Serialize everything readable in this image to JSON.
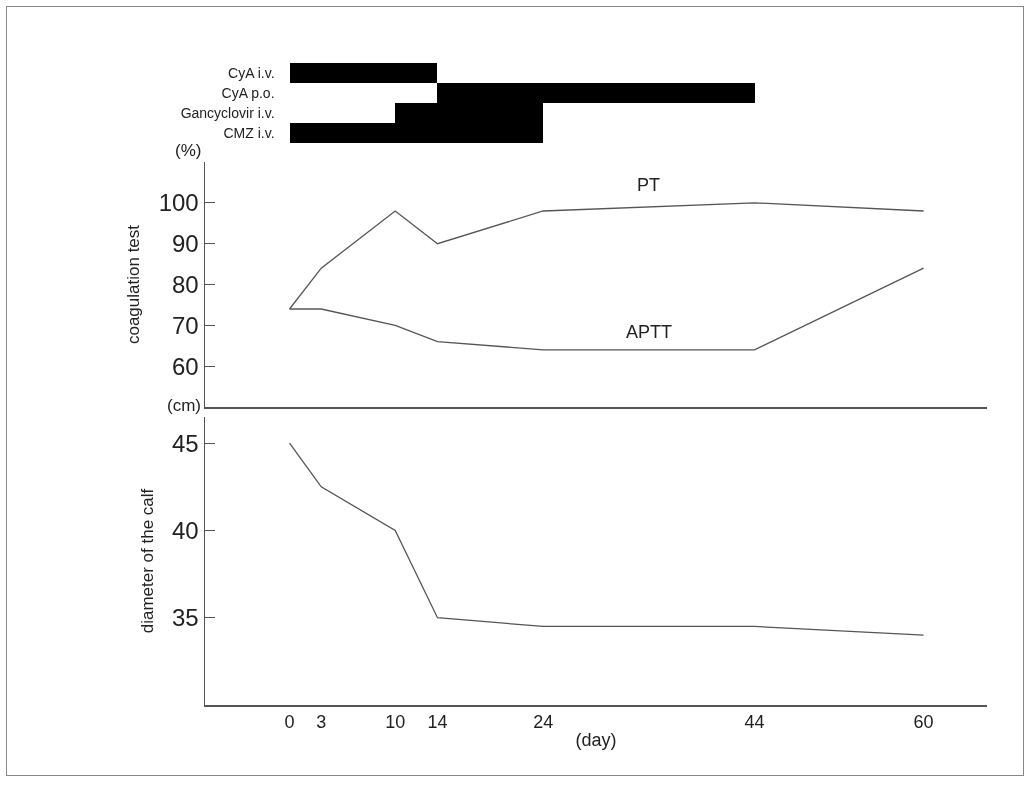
{
  "chart_data": [
    {
      "type": "bar",
      "orientation": "horizontal",
      "categories": [
        "CyA i.v.",
        "CyA p.o.",
        "Gancyclovir i.v.",
        "CMZ i.v."
      ],
      "values": [
        14,
        30,
        14,
        24
      ],
      "base": [
        0,
        14,
        10,
        0
      ],
      "color": "#000000",
      "xlim": [
        0,
        60
      ],
      "xticks": [
        0,
        3,
        10,
        14,
        24,
        44,
        60
      ],
      "tick_labels": "y",
      "grid": false,
      "legend": false
    },
    {
      "type": "line",
      "x": [
        0,
        3,
        10,
        14,
        24,
        44,
        60
      ],
      "ylabel": "coagulation test",
      "annotations": [
        "(%)"
      ],
      "series": [
        {
          "name": "PT",
          "color": "#555555",
          "values": [
            74,
            84,
            98,
            90,
            98,
            100,
            98
          ]
        },
        {
          "name": "APTT",
          "color": "#555555",
          "values": [
            74,
            74,
            70,
            66,
            64,
            64,
            84
          ]
        }
      ],
      "xlim": [
        -8,
        66
      ],
      "ylim": [
        50,
        110
      ],
      "yticks": [
        60,
        70,
        80,
        90,
        100
      ],
      "tick_labels": "y",
      "grid": false,
      "legend": false,
      "marker": "none",
      "line_style": "solid"
    },
    {
      "type": "line",
      "x": [
        0,
        3,
        10,
        14,
        24,
        44,
        60
      ],
      "ylabel": "diameter of the calf",
      "xlabel": "(day)",
      "annotations": [
        "(cm)"
      ],
      "series": [
        {
          "color": "#555555",
          "values": [
            45,
            42.5,
            40,
            35,
            34.5,
            34.5,
            34
          ]
        }
      ],
      "xlim": [
        -8,
        66
      ],
      "xticks": [
        0,
        3,
        10,
        14,
        24,
        44,
        60
      ],
      "ylim": [
        30,
        46.5
      ],
      "yticks": [
        35,
        40,
        45
      ],
      "grid": false,
      "legend": false,
      "marker": "none",
      "line_style": "solid"
    }
  ]
}
